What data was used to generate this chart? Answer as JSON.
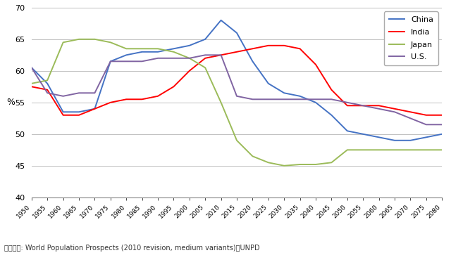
{
  "years": [
    1950,
    1955,
    1960,
    1965,
    1970,
    1975,
    1980,
    1985,
    1990,
    1995,
    2000,
    2005,
    2010,
    2015,
    2020,
    2025,
    2030,
    2035,
    2040,
    2045,
    2050,
    2055,
    2060,
    2065,
    2070,
    2075,
    2080
  ],
  "china": [
    60.5,
    58.0,
    53.5,
    53.5,
    54.0,
    61.5,
    62.5,
    63.0,
    63.0,
    63.5,
    64.0,
    65.0,
    68.0,
    66.0,
    61.5,
    58.0,
    56.5,
    56.0,
    55.0,
    53.0,
    50.5,
    50.0,
    49.5,
    49.0,
    49.0,
    49.5,
    50.0
  ],
  "india": [
    57.5,
    57.0,
    53.0,
    53.0,
    54.0,
    55.0,
    55.5,
    55.5,
    56.0,
    57.5,
    60.0,
    62.0,
    62.5,
    63.0,
    63.5,
    64.0,
    64.0,
    63.5,
    61.0,
    57.0,
    54.5,
    54.5,
    54.5,
    54.0,
    53.5,
    53.0,
    53.0
  ],
  "japan": [
    58.0,
    58.5,
    64.5,
    65.0,
    65.0,
    64.5,
    63.5,
    63.5,
    63.5,
    63.0,
    62.0,
    60.5,
    55.0,
    49.0,
    46.5,
    45.5,
    45.0,
    45.2,
    45.2,
    45.5,
    47.5,
    47.5,
    47.5,
    47.5,
    47.5,
    47.5,
    47.5
  ],
  "us": [
    60.5,
    56.5,
    56.0,
    56.5,
    56.5,
    61.5,
    61.5,
    61.5,
    62.0,
    62.0,
    62.0,
    62.5,
    62.5,
    56.0,
    55.5,
    55.5,
    55.5,
    55.5,
    55.5,
    55.5,
    55.0,
    54.5,
    54.0,
    53.5,
    52.5,
    51.5,
    51.5
  ],
  "china_color": "#4472C4",
  "india_color": "#FF0000",
  "japan_color": "#9BBB59",
  "us_color": "#8064A2",
  "ylim": [
    40,
    70
  ],
  "yticks": [
    40,
    45,
    50,
    55,
    60,
    65,
    70
  ],
  "ylabel": "%",
  "source_text": "数据来源: World Population Prospects (2010 revision, medium variants)，UNPD",
  "bg_color": "#FFFFFF",
  "grid_color": "#C0C0C0",
  "linewidth": 1.4
}
